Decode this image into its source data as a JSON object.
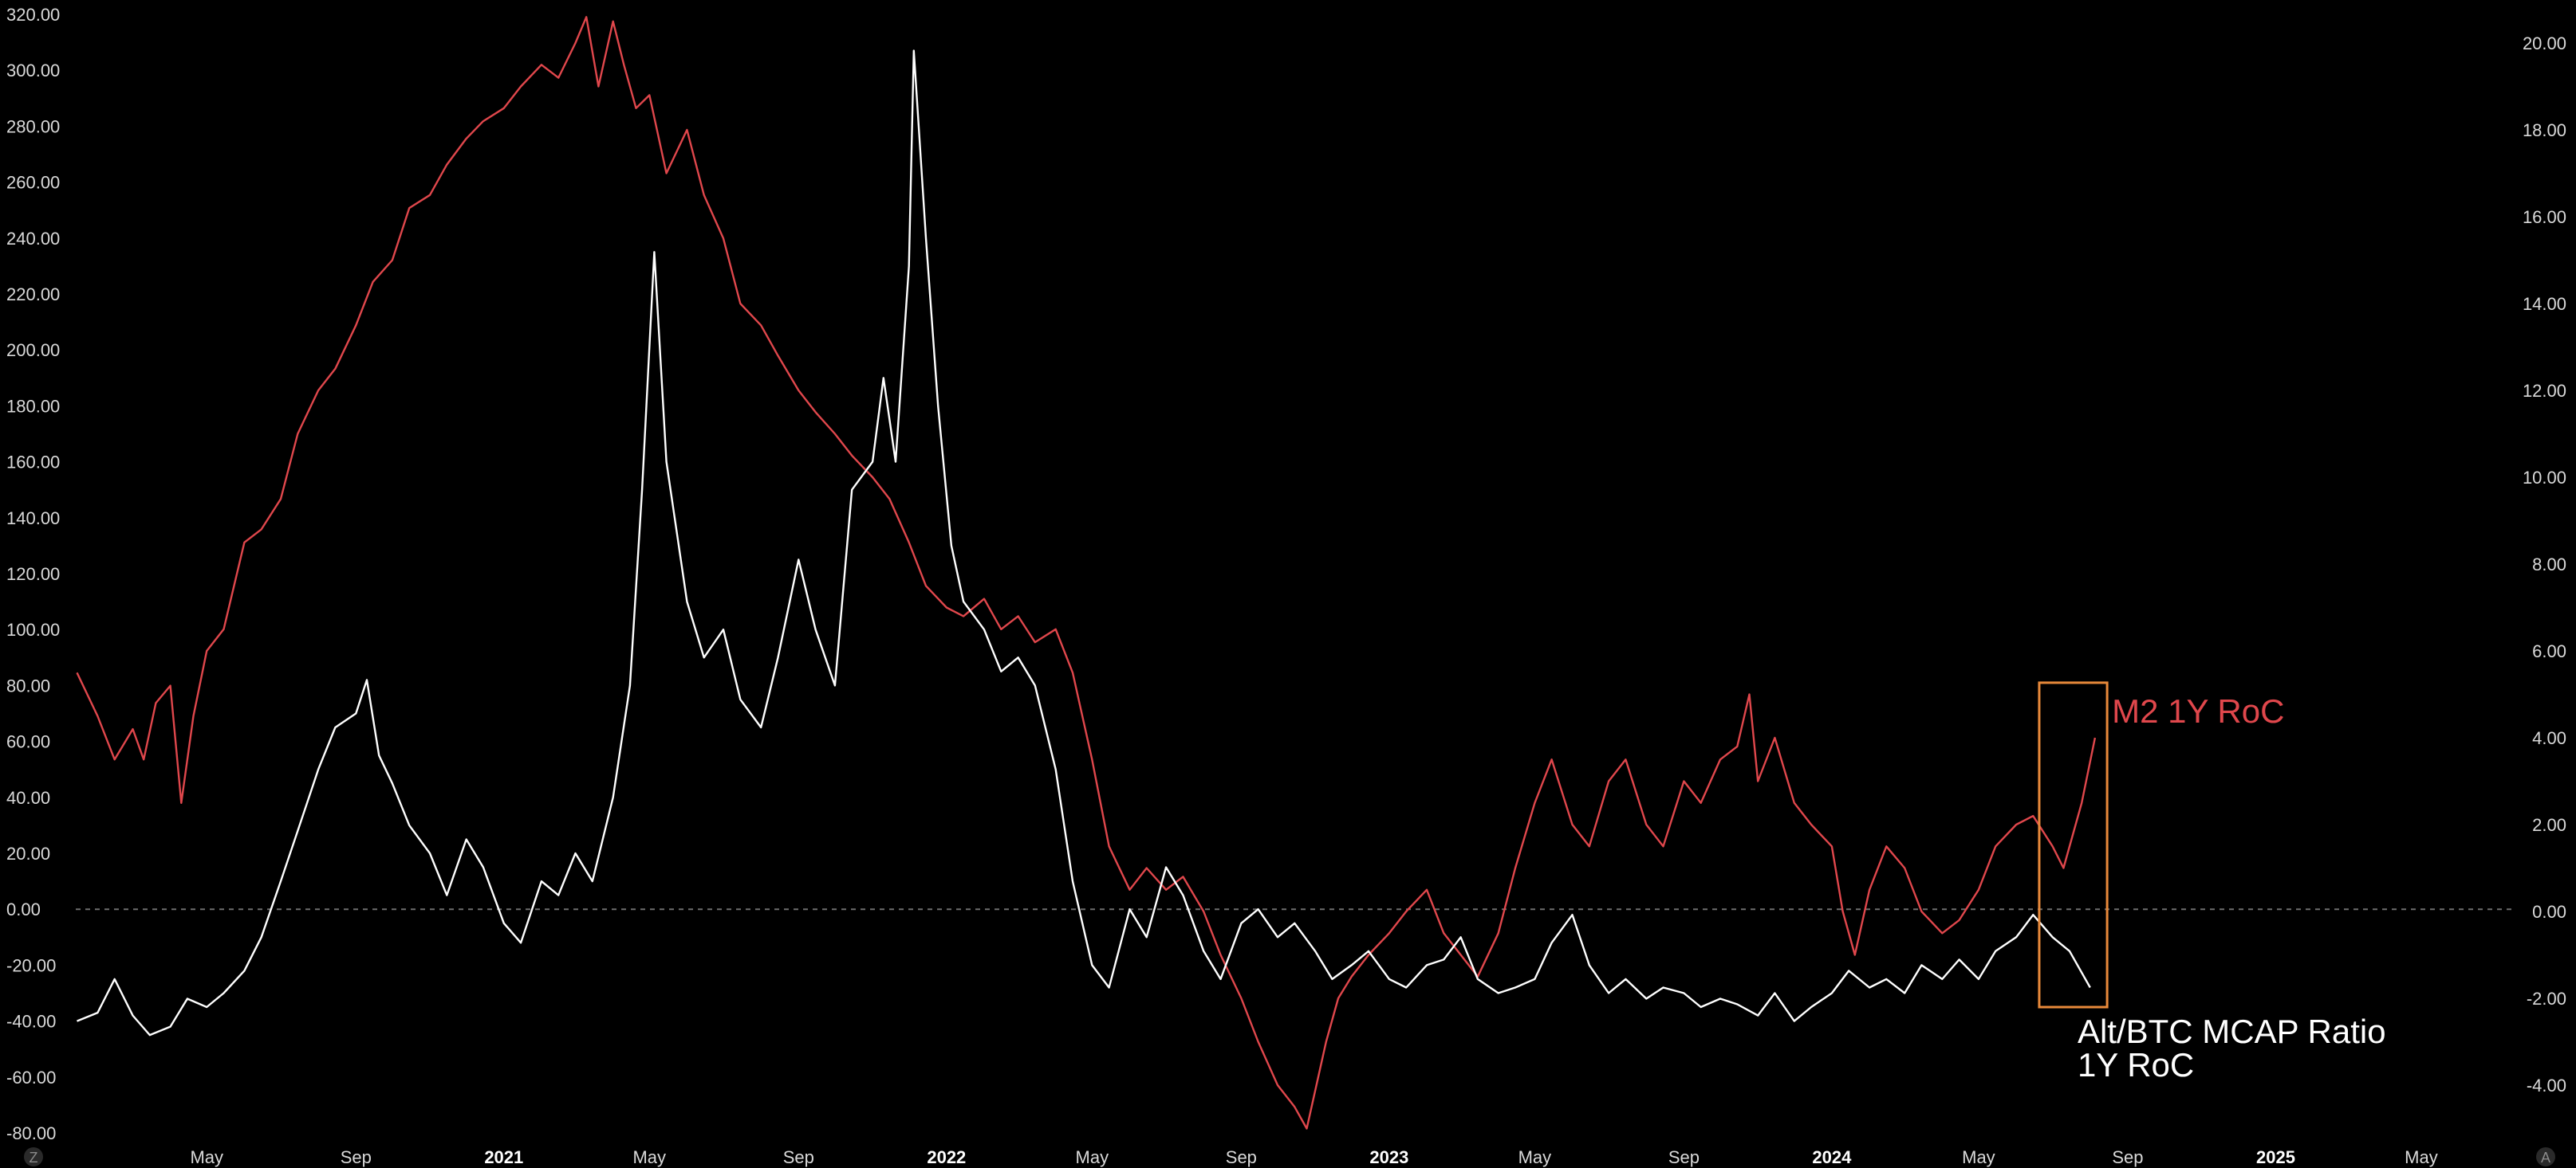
{
  "chart_data": {
    "type": "line",
    "title": "",
    "xlabel": "",
    "ylabel_left": "",
    "ylabel_right": "",
    "x_range": [
      "2020-01-14",
      "2025-07-15"
    ],
    "ylim_left": [
      -80,
      325
    ],
    "ylim_right": [
      -5,
      20.6
    ],
    "left_ticks": [
      "-80.00",
      "-60.00",
      "-40.00",
      "-20.00",
      "0.00",
      "20.00",
      "40.00",
      "60.00",
      "80.00",
      "100.00",
      "120.00",
      "140.00",
      "160.00",
      "180.00",
      "200.00",
      "220.00",
      "240.00",
      "260.00",
      "280.00",
      "300.00",
      "320.00"
    ],
    "right_ticks": [
      "-4.00",
      "-2.00",
      "0.00",
      "2.00",
      "4.00",
      "6.00",
      "8.00",
      "10.00",
      "12.00",
      "14.00",
      "16.00",
      "18.00",
      "20.00"
    ],
    "x_ticks": [
      {
        "date": "2020-05-01",
        "label": "May",
        "bold": false
      },
      {
        "date": "2020-09-01",
        "label": "Sep",
        "bold": false
      },
      {
        "date": "2021-01-01",
        "label": "2021",
        "bold": true
      },
      {
        "date": "2021-05-01",
        "label": "May",
        "bold": false
      },
      {
        "date": "2021-09-01",
        "label": "Sep",
        "bold": false
      },
      {
        "date": "2022-01-01",
        "label": "2022",
        "bold": true
      },
      {
        "date": "2022-05-01",
        "label": "May",
        "bold": false
      },
      {
        "date": "2022-09-01",
        "label": "Sep",
        "bold": false
      },
      {
        "date": "2023-01-01",
        "label": "2023",
        "bold": true
      },
      {
        "date": "2023-05-01",
        "label": "May",
        "bold": false
      },
      {
        "date": "2023-09-01",
        "label": "Sep",
        "bold": false
      },
      {
        "date": "2024-01-01",
        "label": "2024",
        "bold": true
      },
      {
        "date": "2024-05-01",
        "label": "May",
        "bold": false
      },
      {
        "date": "2024-09-01",
        "label": "Sep",
        "bold": false
      },
      {
        "date": "2025-01-01",
        "label": "2025",
        "bold": true
      },
      {
        "date": "2025-05-01",
        "label": "May",
        "bold": false
      }
    ],
    "zero_line": {
      "axis": "left",
      "value": 0
    },
    "grid": false,
    "series": [
      {
        "name": "Alt/BTC MCAP Ratio 1Y RoC",
        "label_line1": "Alt/BTC MCAP Ratio",
        "label_line2": "1Y RoC",
        "axis": "left",
        "color": "#ffffff",
        "points": [
          [
            "2020-01-15",
            -40
          ],
          [
            "2020-02-01",
            -37
          ],
          [
            "2020-02-15",
            -25
          ],
          [
            "2020-03-01",
            -38
          ],
          [
            "2020-03-15",
            -45
          ],
          [
            "2020-04-01",
            -42
          ],
          [
            "2020-04-15",
            -32
          ],
          [
            "2020-05-01",
            -35
          ],
          [
            "2020-05-15",
            -30
          ],
          [
            "2020-06-01",
            -22
          ],
          [
            "2020-06-15",
            -10
          ],
          [
            "2020-07-01",
            10
          ],
          [
            "2020-07-15",
            28
          ],
          [
            "2020-08-01",
            50
          ],
          [
            "2020-08-15",
            65
          ],
          [
            "2020-09-01",
            70
          ],
          [
            "2020-09-10",
            82
          ],
          [
            "2020-09-20",
            55
          ],
          [
            "2020-10-01",
            45
          ],
          [
            "2020-10-15",
            30
          ],
          [
            "2020-11-01",
            20
          ],
          [
            "2020-11-15",
            5
          ],
          [
            "2020-12-01",
            25
          ],
          [
            "2020-12-15",
            15
          ],
          [
            "2021-01-01",
            -5
          ],
          [
            "2021-01-15",
            -12
          ],
          [
            "2021-02-01",
            10
          ],
          [
            "2021-02-15",
            5
          ],
          [
            "2021-03-01",
            20
          ],
          [
            "2021-03-15",
            10
          ],
          [
            "2021-04-01",
            40
          ],
          [
            "2021-04-15",
            80
          ],
          [
            "2021-04-25",
            150
          ],
          [
            "2021-05-05",
            235
          ],
          [
            "2021-05-15",
            160
          ],
          [
            "2021-06-01",
            110
          ],
          [
            "2021-06-15",
            90
          ],
          [
            "2021-07-01",
            100
          ],
          [
            "2021-07-15",
            75
          ],
          [
            "2021-08-01",
            65
          ],
          [
            "2021-08-15",
            90
          ],
          [
            "2021-09-01",
            125
          ],
          [
            "2021-09-15",
            100
          ],
          [
            "2021-10-01",
            80
          ],
          [
            "2021-10-15",
            150
          ],
          [
            "2021-11-01",
            160
          ],
          [
            "2021-11-10",
            190
          ],
          [
            "2021-11-20",
            160
          ],
          [
            "2021-12-01",
            230
          ],
          [
            "2021-12-05",
            307
          ],
          [
            "2021-12-15",
            240
          ],
          [
            "2021-12-25",
            180
          ],
          [
            "2022-01-05",
            130
          ],
          [
            "2022-01-15",
            110
          ],
          [
            "2022-02-01",
            100
          ],
          [
            "2022-02-15",
            85
          ],
          [
            "2022-03-01",
            90
          ],
          [
            "2022-03-15",
            80
          ],
          [
            "2022-04-01",
            50
          ],
          [
            "2022-04-15",
            10
          ],
          [
            "2022-05-01",
            -20
          ],
          [
            "2022-05-15",
            -28
          ],
          [
            "2022-06-01",
            0
          ],
          [
            "2022-06-15",
            -10
          ],
          [
            "2022-07-01",
            15
          ],
          [
            "2022-07-15",
            5
          ],
          [
            "2022-08-01",
            -15
          ],
          [
            "2022-08-15",
            -25
          ],
          [
            "2022-09-01",
            -5
          ],
          [
            "2022-09-15",
            0
          ],
          [
            "2022-10-01",
            -10
          ],
          [
            "2022-10-15",
            -5
          ],
          [
            "2022-11-01",
            -15
          ],
          [
            "2022-11-15",
            -25
          ],
          [
            "2022-12-01",
            -20
          ],
          [
            "2022-12-15",
            -15
          ],
          [
            "2023-01-01",
            -25
          ],
          [
            "2023-01-15",
            -28
          ],
          [
            "2023-02-01",
            -20
          ],
          [
            "2023-02-15",
            -18
          ],
          [
            "2023-03-01",
            -10
          ],
          [
            "2023-03-15",
            -25
          ],
          [
            "2023-04-01",
            -30
          ],
          [
            "2023-04-15",
            -28
          ],
          [
            "2023-05-01",
            -25
          ],
          [
            "2023-05-15",
            -12
          ],
          [
            "2023-06-01",
            -2
          ],
          [
            "2023-06-15",
            -20
          ],
          [
            "2023-07-01",
            -30
          ],
          [
            "2023-07-15",
            -25
          ],
          [
            "2023-08-01",
            -32
          ],
          [
            "2023-08-15",
            -28
          ],
          [
            "2023-09-01",
            -30
          ],
          [
            "2023-09-15",
            -35
          ],
          [
            "2023-10-01",
            -32
          ],
          [
            "2023-10-15",
            -34
          ],
          [
            "2023-11-01",
            -38
          ],
          [
            "2023-11-15",
            -30
          ],
          [
            "2023-12-01",
            -40
          ],
          [
            "2023-12-15",
            -35
          ],
          [
            "2024-01-01",
            -30
          ],
          [
            "2024-01-15",
            -22
          ],
          [
            "2024-02-01",
            -28
          ],
          [
            "2024-02-15",
            -25
          ],
          [
            "2024-03-01",
            -30
          ],
          [
            "2024-03-15",
            -20
          ],
          [
            "2024-04-01",
            -25
          ],
          [
            "2024-04-15",
            -18
          ],
          [
            "2024-05-01",
            -25
          ],
          [
            "2024-05-15",
            -15
          ],
          [
            "2024-06-01",
            -10
          ],
          [
            "2024-06-15",
            -2
          ],
          [
            "2024-07-01",
            -10
          ],
          [
            "2024-07-15",
            -15
          ],
          [
            "2024-08-01",
            -28
          ]
        ]
      },
      {
        "name": "M2 1Y RoC",
        "axis": "right",
        "color": "#e0474c",
        "points": [
          [
            "2020-01-15",
            5.5
          ],
          [
            "2020-02-01",
            4.5
          ],
          [
            "2020-02-15",
            3.5
          ],
          [
            "2020-03-01",
            4.2
          ],
          [
            "2020-03-10",
            3.5
          ],
          [
            "2020-03-20",
            4.8
          ],
          [
            "2020-04-01",
            5.2
          ],
          [
            "2020-04-10",
            2.5
          ],
          [
            "2020-04-20",
            4.5
          ],
          [
            "2020-05-01",
            6.0
          ],
          [
            "2020-05-15",
            6.5
          ],
          [
            "2020-06-01",
            8.5
          ],
          [
            "2020-06-15",
            8.8
          ],
          [
            "2020-07-01",
            9.5
          ],
          [
            "2020-07-15",
            11.0
          ],
          [
            "2020-08-01",
            12.0
          ],
          [
            "2020-08-15",
            12.5
          ],
          [
            "2020-09-01",
            13.5
          ],
          [
            "2020-09-15",
            14.5
          ],
          [
            "2020-10-01",
            15.0
          ],
          [
            "2020-10-15",
            16.2
          ],
          [
            "2020-11-01",
            16.5
          ],
          [
            "2020-11-15",
            17.2
          ],
          [
            "2020-12-01",
            17.8
          ],
          [
            "2020-12-15",
            18.2
          ],
          [
            "2021-01-01",
            18.5
          ],
          [
            "2021-01-15",
            19.0
          ],
          [
            "2021-02-01",
            19.5
          ],
          [
            "2021-02-15",
            19.2
          ],
          [
            "2021-03-01",
            20.0
          ],
          [
            "2021-03-10",
            20.6
          ],
          [
            "2021-03-20",
            19.0
          ],
          [
            "2021-04-01",
            20.5
          ],
          [
            "2021-04-10",
            19.5
          ],
          [
            "2021-04-20",
            18.5
          ],
          [
            "2021-05-01",
            18.8
          ],
          [
            "2021-05-15",
            17.0
          ],
          [
            "2021-06-01",
            18.0
          ],
          [
            "2021-06-15",
            16.5
          ],
          [
            "2021-07-01",
            15.5
          ],
          [
            "2021-07-15",
            14.0
          ],
          [
            "2021-08-01",
            13.5
          ],
          [
            "2021-08-15",
            12.8
          ],
          [
            "2021-09-01",
            12.0
          ],
          [
            "2021-09-15",
            11.5
          ],
          [
            "2021-10-01",
            11.0
          ],
          [
            "2021-10-15",
            10.5
          ],
          [
            "2021-11-01",
            10.0
          ],
          [
            "2021-11-15",
            9.5
          ],
          [
            "2021-12-01",
            8.5
          ],
          [
            "2021-12-15",
            7.5
          ],
          [
            "2022-01-01",
            7.0
          ],
          [
            "2022-01-15",
            6.8
          ],
          [
            "2022-02-01",
            7.2
          ],
          [
            "2022-02-15",
            6.5
          ],
          [
            "2022-03-01",
            6.8
          ],
          [
            "2022-03-15",
            6.2
          ],
          [
            "2022-04-01",
            6.5
          ],
          [
            "2022-04-15",
            5.5
          ],
          [
            "2022-05-01",
            3.5
          ],
          [
            "2022-05-15",
            1.5
          ],
          [
            "2022-06-01",
            0.5
          ],
          [
            "2022-06-15",
            1.0
          ],
          [
            "2022-07-01",
            0.5
          ],
          [
            "2022-07-15",
            0.8
          ],
          [
            "2022-08-01",
            0.0
          ],
          [
            "2022-08-15",
            -1.0
          ],
          [
            "2022-09-01",
            -2.0
          ],
          [
            "2022-09-15",
            -3.0
          ],
          [
            "2022-10-01",
            -4.0
          ],
          [
            "2022-10-15",
            -4.5
          ],
          [
            "2022-10-25",
            -5.0
          ],
          [
            "2022-11-10",
            -3.0
          ],
          [
            "2022-11-20",
            -2.0
          ],
          [
            "2022-12-01",
            -1.5
          ],
          [
            "2022-12-15",
            -1.0
          ],
          [
            "2023-01-01",
            -0.5
          ],
          [
            "2023-01-15",
            0.0
          ],
          [
            "2023-02-01",
            0.5
          ],
          [
            "2023-02-15",
            -0.5
          ],
          [
            "2023-03-01",
            -1.0
          ],
          [
            "2023-03-15",
            -1.5
          ],
          [
            "2023-04-01",
            -0.5
          ],
          [
            "2023-04-15",
            1.0
          ],
          [
            "2023-05-01",
            2.5
          ],
          [
            "2023-05-15",
            3.5
          ],
          [
            "2023-06-01",
            2.0
          ],
          [
            "2023-06-15",
            1.5
          ],
          [
            "2023-07-01",
            3.0
          ],
          [
            "2023-07-15",
            3.5
          ],
          [
            "2023-08-01",
            2.0
          ],
          [
            "2023-08-15",
            1.5
          ],
          [
            "2023-09-01",
            3.0
          ],
          [
            "2023-09-15",
            2.5
          ],
          [
            "2023-10-01",
            3.5
          ],
          [
            "2023-10-15",
            3.8
          ],
          [
            "2023-10-25",
            5.0
          ],
          [
            "2023-11-01",
            3.0
          ],
          [
            "2023-11-15",
            4.0
          ],
          [
            "2023-12-01",
            2.5
          ],
          [
            "2023-12-15",
            2.0
          ],
          [
            "2024-01-01",
            1.5
          ],
          [
            "2024-01-10",
            0.0
          ],
          [
            "2024-01-20",
            -1.0
          ],
          [
            "2024-02-01",
            0.5
          ],
          [
            "2024-02-15",
            1.5
          ],
          [
            "2024-03-01",
            1.0
          ],
          [
            "2024-03-15",
            0.0
          ],
          [
            "2024-04-01",
            -0.5
          ],
          [
            "2024-04-15",
            -0.2
          ],
          [
            "2024-05-01",
            0.5
          ],
          [
            "2024-05-15",
            1.5
          ],
          [
            "2024-06-01",
            2.0
          ],
          [
            "2024-06-15",
            2.2
          ],
          [
            "2024-07-01",
            1.5
          ],
          [
            "2024-07-10",
            1.0
          ],
          [
            "2024-07-20",
            2.0
          ],
          [
            "2024-07-25",
            2.5
          ],
          [
            "2024-08-05",
            4.0
          ]
        ]
      }
    ],
    "annotation": {
      "type": "highlight-rect",
      "color": "#e8893a",
      "x_from": "2024-06-20",
      "x_to": "2024-08-15",
      "y_from": -35,
      "y_to": 81
    },
    "corner_left": "Z",
    "corner_right": "A"
  }
}
